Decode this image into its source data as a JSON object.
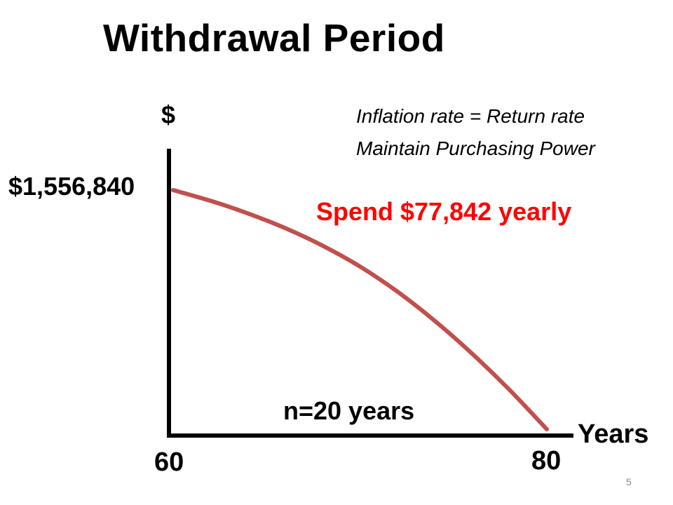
{
  "title": "Withdrawal Period",
  "notes": [
    "Inflation rate = Return rate",
    "Maintain Purchasing Power"
  ],
  "colors": {
    "curve": "#c0504d",
    "highlight_text": "#ff0000",
    "axis": "#000000"
  },
  "chart_data": {
    "type": "line",
    "title": "Withdrawal Period",
    "xlabel": "Years",
    "ylabel": "$",
    "x_tick_labels": [
      "60",
      "80"
    ],
    "y_tick_label": "$1,556,840",
    "xlim": [
      60,
      80
    ],
    "ylim": [
      0,
      1556840
    ],
    "series": [
      {
        "x": [
          60,
          62,
          64,
          66,
          68,
          70,
          72,
          74,
          76,
          78,
          80
        ],
        "y": [
          1556840,
          1487000,
          1405000,
          1309000,
          1195000,
          1059000,
          896000,
          706000,
          492000,
          257000,
          0
        ]
      }
    ],
    "annotations": {
      "spend": "Spend $77,842 yearly",
      "period": "n=20 years"
    },
    "grid": false,
    "legend": "none"
  },
  "slide_number": "5"
}
